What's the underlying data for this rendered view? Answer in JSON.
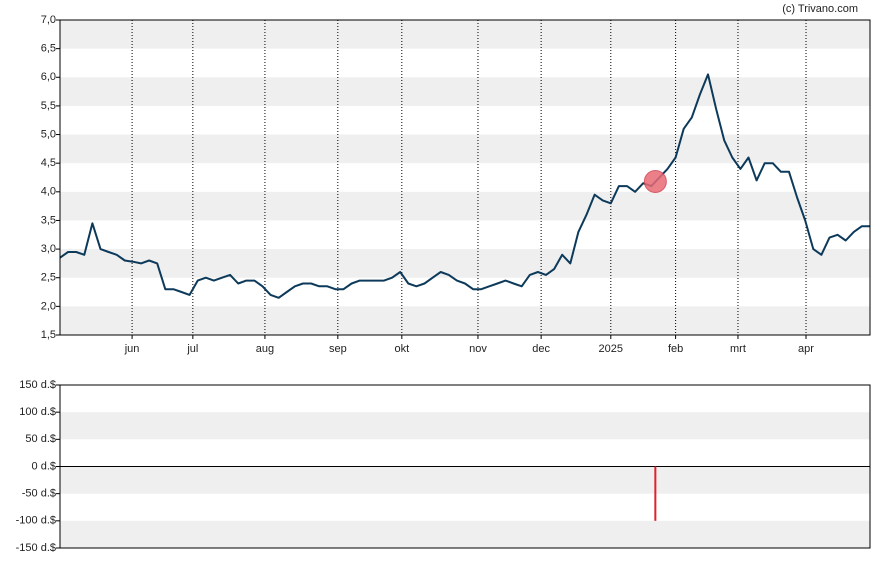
{
  "source": "(c) Trivano.com",
  "chart_data": [
    {
      "type": "line",
      "color": "#0d3a5a",
      "values": [
        2.85,
        2.95,
        2.95,
        2.9,
        3.45,
        3.0,
        2.95,
        2.9,
        2.8,
        2.78,
        2.75,
        2.8,
        2.75,
        2.3,
        2.3,
        2.25,
        2.2,
        2.45,
        2.5,
        2.45,
        2.5,
        2.55,
        2.4,
        2.45,
        2.45,
        2.35,
        2.2,
        2.15,
        2.25,
        2.35,
        2.4,
        2.4,
        2.35,
        2.35,
        2.3,
        2.3,
        2.4,
        2.45,
        2.45,
        2.45,
        2.45,
        2.5,
        2.6,
        2.4,
        2.35,
        2.4,
        2.5,
        2.6,
        2.55,
        2.45,
        2.4,
        2.3,
        2.3,
        2.35,
        2.4,
        2.45,
        2.4,
        2.35,
        2.55,
        2.6,
        2.55,
        2.65,
        2.9,
        2.75,
        3.3,
        3.6,
        3.95,
        3.85,
        3.8,
        4.1,
        4.1,
        4.0,
        4.15,
        4.1,
        4.25,
        4.4,
        4.6,
        5.1,
        5.3,
        5.7,
        6.05,
        5.45,
        4.9,
        4.6,
        4.4,
        4.6,
        4.2,
        4.5,
        4.5,
        4.35,
        4.35,
        3.9,
        3.5,
        3.0,
        2.9,
        3.2,
        3.25,
        3.15,
        3.3,
        3.4,
        3.4
      ],
      "xlim": [
        0,
        100
      ],
      "xticks": [
        {
          "value": 8.9,
          "label": "jun"
        },
        {
          "value": 16.4,
          "label": "jul"
        },
        {
          "value": 25.3,
          "label": "aug"
        },
        {
          "value": 34.3,
          "label": "sep"
        },
        {
          "value": 42.2,
          "label": "okt"
        },
        {
          "value": 51.6,
          "label": "nov"
        },
        {
          "value": 59.4,
          "label": "dec"
        },
        {
          "value": 68,
          "label": "2025"
        },
        {
          "value": 76,
          "label": "feb"
        },
        {
          "value": 83.7,
          "label": "mrt"
        },
        {
          "value": 92.1,
          "label": "apr"
        }
      ],
      "ylim": [
        1.5,
        7
      ],
      "yticks": [
        {
          "value": 1.5,
          "label": "1,5"
        },
        {
          "value": 2,
          "label": "2,0"
        },
        {
          "value": 2.5,
          "label": "2,5"
        },
        {
          "value": 3,
          "label": "3,0"
        },
        {
          "value": 3.5,
          "label": "3,5"
        },
        {
          "value": 4,
          "label": "4,0"
        },
        {
          "value": 4.5,
          "label": "4,5"
        },
        {
          "value": 5,
          "label": "5,0"
        },
        {
          "value": 5.5,
          "label": "5,5"
        },
        {
          "value": 6,
          "label": "6,0"
        },
        {
          "value": 6.5,
          "label": "6,5"
        },
        {
          "value": 7,
          "label": "7,0"
        }
      ],
      "grid": true,
      "marker": {
        "x": 73.5,
        "value": 4.18,
        "color": "#e86a74"
      }
    },
    {
      "type": "bar",
      "color": "#e0202a",
      "x": [
        73.5
      ],
      "values": [
        -100
      ],
      "xlim": [
        0,
        100
      ],
      "ylim": [
        -150,
        150
      ],
      "yticks": [
        {
          "value": -150,
          "label": "-150 d.$"
        },
        {
          "value": -100,
          "label": "-100 d.$"
        },
        {
          "value": -50,
          "label": "-50 d.$"
        },
        {
          "value": 0,
          "label": "0 d.$"
        },
        {
          "value": 50,
          "label": "50 d.$"
        },
        {
          "value": 100,
          "label": "100 d.$"
        },
        {
          "value": 150,
          "label": "150 d.$"
        }
      ]
    }
  ]
}
